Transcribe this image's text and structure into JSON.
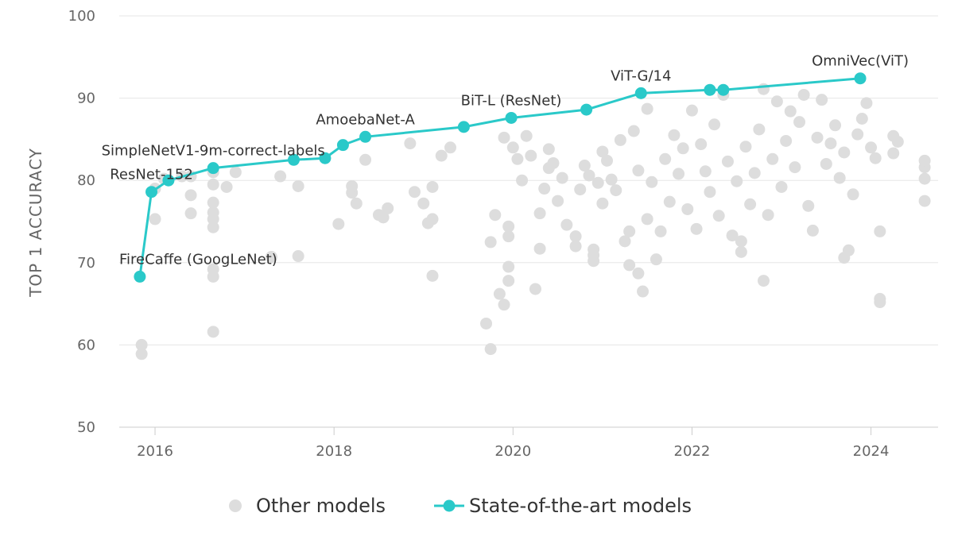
{
  "chart_data": {
    "type": "scatter",
    "ylabel": "TOP 1 ACCURACY",
    "xlabel": "",
    "xlim": [
      2015.6,
      2024.75
    ],
    "ylim": [
      50,
      100
    ],
    "yticks": [
      50,
      60,
      70,
      80,
      90,
      100
    ],
    "xticks": [
      2016,
      2018,
      2020,
      2022,
      2024
    ],
    "grid": "horizontal",
    "legend_position": "bottom",
    "colors": {
      "other": "#dddddd",
      "sota": "#2ac9c9",
      "grid": "#e6e6e6",
      "axis": "#cccccc",
      "text": "#333333"
    },
    "series": [
      {
        "name": "Other models",
        "type": "scatter",
        "clusters": [
          {
            "x": [
              2015.85,
              2015.85
            ],
            "y": [
              58.9,
              60
            ]
          },
          {
            "x": [
              2016.0,
              2016.0,
              2016.1,
              2016.3
            ],
            "y": [
              75.3,
              79,
              80.2,
              80.5
            ]
          },
          {
            "x": [
              2016.4,
              2016.4,
              2016.4
            ],
            "y": [
              76,
              78.2,
              80.5
            ]
          },
          {
            "x": [
              2016.65,
              2016.65,
              2016.65,
              2016.65,
              2016.65,
              2016.65,
              2016.65,
              2016.65,
              2016.65
            ],
            "y": [
              61.6,
              68.3,
              69.2,
              74.3,
              75.3,
              76.1,
              77.3,
              79.5,
              81
            ]
          },
          {
            "x": [
              2016.8,
              2016.9,
              2017.4,
              2017.6,
              2017.6
            ],
            "y": [
              79.2,
              81,
              80.5,
              79.3,
              70.8
            ]
          },
          {
            "x": [
              2017.3
            ],
            "y": [
              70.7
            ]
          },
          {
            "x": [
              2018.05,
              2018.2,
              2018.2,
              2018.25,
              2018.35
            ],
            "y": [
              74.7,
              78.5,
              79.3,
              77.2,
              82.5
            ]
          },
          {
            "x": [
              2018.5,
              2018.55,
              2018.6
            ],
            "y": [
              75.8,
              75.5,
              76.6
            ]
          },
          {
            "x": [
              2018.85,
              2018.9,
              2019.0,
              2019.05
            ],
            "y": [
              84.5,
              78.6,
              77.2,
              74.8
            ]
          },
          {
            "x": [
              2019.1,
              2019.1,
              2019.1,
              2019.2,
              2019.3
            ],
            "y": [
              68.4,
              75.3,
              79.2,
              83,
              84
            ]
          },
          {
            "x": [
              2019.7,
              2019.75,
              2019.75,
              2019.8,
              2019.9
            ],
            "y": [
              62.6,
              59.5,
              72.5,
              75.8,
              85.2
            ]
          },
          {
            "x": [
              2019.85,
              2019.9,
              2019.95,
              2019.95,
              2019.95,
              2019.95
            ],
            "y": [
              66.2,
              64.9,
              67.8,
              69.5,
              73.2,
              74.4
            ]
          },
          {
            "x": [
              2020.0,
              2020.05,
              2020.1,
              2020.15,
              2020.2
            ],
            "y": [
              84,
              82.6,
              80,
              85.4,
              83
            ]
          },
          {
            "x": [
              2020.25,
              2020.3,
              2020.3,
              2020.35,
              2020.4
            ],
            "y": [
              66.8,
              71.7,
              76,
              79,
              81.5
            ]
          },
          {
            "x": [
              2020.4,
              2020.45,
              2020.5,
              2020.55,
              2020.6
            ],
            "y": [
              83.8,
              82.1,
              77.5,
              80.3,
              74.6
            ]
          },
          {
            "x": [
              2020.7,
              2020.7,
              2020.75,
              2020.8,
              2020.85
            ],
            "y": [
              72,
              73.2,
              78.9,
              81.8,
              80.6
            ]
          },
          {
            "x": [
              2020.9,
              2020.9,
              2020.9,
              2020.95,
              2021.0
            ],
            "y": [
              70.2,
              70.9,
              71.6,
              79.7,
              83.5
            ]
          },
          {
            "x": [
              2021.0,
              2021.05,
              2021.1,
              2021.15,
              2021.2
            ],
            "y": [
              77.2,
              82.4,
              80.1,
              78.8,
              84.9
            ]
          },
          {
            "x": [
              2021.25,
              2021.3,
              2021.3,
              2021.35,
              2021.4
            ],
            "y": [
              72.6,
              69.7,
              73.8,
              86,
              81.2
            ]
          },
          {
            "x": [
              2021.4,
              2021.45,
              2021.5,
              2021.5,
              2021.55
            ],
            "y": [
              68.7,
              66.5,
              75.3,
              88.7,
              79.8
            ]
          },
          {
            "x": [
              2021.6,
              2021.65,
              2021.7,
              2021.75,
              2021.8
            ],
            "y": [
              70.4,
              73.8,
              82.6,
              77.4,
              85.5
            ]
          },
          {
            "x": [
              2021.85,
              2021.9,
              2021.95,
              2022.0,
              2022.05
            ],
            "y": [
              80.8,
              83.9,
              76.5,
              88.5,
              74.1
            ]
          },
          {
            "x": [
              2022.1,
              2022.15,
              2022.2,
              2022.25,
              2022.3
            ],
            "y": [
              84.4,
              81.1,
              78.6,
              86.8,
              75.7
            ]
          },
          {
            "x": [
              2022.35,
              2022.4,
              2022.45,
              2022.5,
              2022.55
            ],
            "y": [
              90.4,
              82.3,
              73.3,
              79.9,
              71.3
            ]
          },
          {
            "x": [
              2022.55,
              2022.6,
              2022.65,
              2022.7,
              2022.75
            ],
            "y": [
              72.6,
              84.1,
              77.1,
              80.9,
              86.2
            ]
          },
          {
            "x": [
              2022.8,
              2022.8,
              2022.85,
              2022.9,
              2022.95
            ],
            "y": [
              91.1,
              67.8,
              75.8,
              82.6,
              89.6
            ]
          },
          {
            "x": [
              2023.0,
              2023.05,
              2023.1,
              2023.15,
              2023.2
            ],
            "y": [
              79.2,
              84.8,
              88.4,
              81.6,
              87.1
            ]
          },
          {
            "x": [
              2023.25,
              2023.3,
              2023.35,
              2023.4,
              2023.45
            ],
            "y": [
              90.4,
              76.9,
              73.9,
              85.2,
              89.8
            ]
          },
          {
            "x": [
              2023.5,
              2023.55,
              2023.6,
              2023.65,
              2023.7
            ],
            "y": [
              82,
              84.5,
              86.7,
              80.3,
              83.4
            ]
          },
          {
            "x": [
              2023.7,
              2023.75,
              2023.8,
              2023.85,
              2023.9
            ],
            "y": [
              70.6,
              71.5,
              78.3,
              85.6,
              87.5
            ]
          },
          {
            "x": [
              2023.95,
              2024.0,
              2024.05,
              2024.1,
              2024.1
            ],
            "y": [
              89.4,
              84,
              82.7,
              65.6,
              65.2
            ]
          },
          {
            "x": [
              2024.1,
              2024.25,
              2024.25,
              2024.3
            ],
            "y": [
              73.8,
              83.3,
              85.4,
              84.7
            ]
          },
          {
            "x": [
              2024.6,
              2024.6,
              2024.6,
              2024.6
            ],
            "y": [
              77.5,
              80.2,
              81.6,
              82.4
            ]
          }
        ]
      },
      {
        "name": "State-of-the-art models",
        "type": "line",
        "x": [
          2015.83,
          2015.96,
          2016.15,
          2016.65,
          2017.55,
          2017.9,
          2018.1,
          2018.35,
          2019.45,
          2019.98,
          2020.82,
          2021.43,
          2022.2,
          2022.35,
          2023.88
        ],
        "y": [
          68.3,
          78.6,
          80.0,
          81.5,
          82.5,
          82.7,
          84.3,
          85.3,
          86.5,
          87.6,
          88.6,
          90.6,
          91.0,
          91.0,
          92.4
        ]
      }
    ],
    "annotations": [
      {
        "text": "FireCaffe (GoogLeNet)",
        "x": 2015.83,
        "y": 68.3
      },
      {
        "text": "ResNet-152",
        "x": 2015.96,
        "y": 78.6
      },
      {
        "text": "SimpleNetV1-9m-correct-labels",
        "x": 2016.65,
        "y": 81.5
      },
      {
        "text": "AmoebaNet-A",
        "x": 2018.35,
        "y": 85.3
      },
      {
        "text": "BiT-L (ResNet)",
        "x": 2019.98,
        "y": 87.6
      },
      {
        "text": "ViT-G/14",
        "x": 2021.43,
        "y": 90.6
      },
      {
        "text": "OmniVec(ViT)",
        "x": 2023.88,
        "y": 92.4
      }
    ]
  },
  "legend": {
    "other_label": "Other models",
    "sota_label": "State-of-the-art models"
  }
}
